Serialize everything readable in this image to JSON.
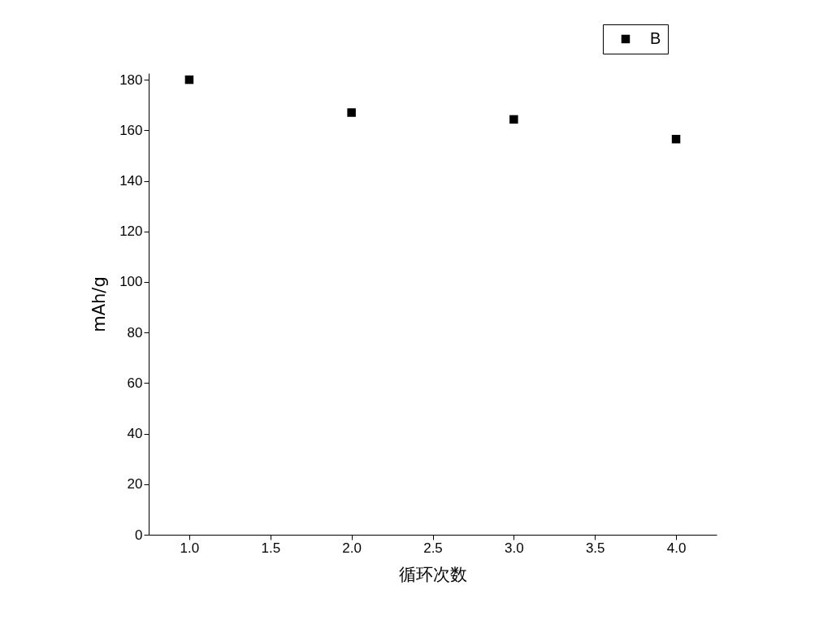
{
  "chart_data": {
    "type": "scatter",
    "xlabel": "循环次数",
    "ylabel": "mAh/g",
    "x": [
      1,
      2,
      3,
      4
    ],
    "series": [
      {
        "name": "B",
        "color": "#000000",
        "values": [
          180,
          167,
          164.3,
          156.5
        ]
      }
    ],
    "xlim": [
      0.75,
      4.25
    ],
    "xticks": [
      {
        "value": 1,
        "label": "1.0"
      },
      {
        "value": 1.5,
        "label": "1.5"
      },
      {
        "value": 2,
        "label": "2.0"
      },
      {
        "value": 2.5,
        "label": "2.5"
      },
      {
        "value": 3,
        "label": "3.0"
      },
      {
        "value": 3.5,
        "label": "3.5"
      },
      {
        "value": 4,
        "label": "4.0"
      }
    ],
    "ylim": [
      0,
      182.6
    ],
    "yticks": [
      0,
      20,
      40,
      60,
      80,
      100,
      120,
      140,
      160,
      180
    ],
    "marker": "square",
    "legend": "top right"
  }
}
